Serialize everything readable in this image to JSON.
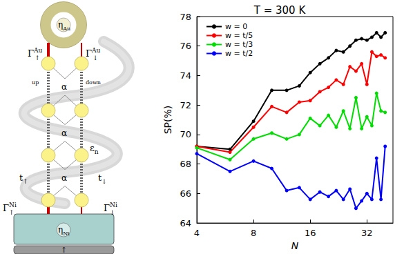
{
  "chart_data": {
    "type": "line",
    "title": "T = 300 K",
    "x_label": "N",
    "y_label": "SP(%)",
    "x": [
      4,
      6,
      8,
      10,
      12,
      14,
      16,
      18,
      20,
      22,
      24,
      26,
      28,
      30,
      32,
      34,
      36,
      38,
      40
    ],
    "xlim": [
      4,
      44
    ],
    "xticks": [
      4,
      8,
      16,
      32
    ],
    "log": "x",
    "ylim": [
      64,
      78
    ],
    "yticks": [
      64,
      66,
      68,
      70,
      72,
      74,
      76,
      78
    ],
    "grid": false,
    "legend": "upper left",
    "marker": "circle",
    "series": [
      {
        "name": "w = 0",
        "color": "#000000",
        "values": [
          69.2,
          69.0,
          70.9,
          73.0,
          73.0,
          73.3,
          74.2,
          74.8,
          75.2,
          75.7,
          75.6,
          76.0,
          76.4,
          76.5,
          76.4,
          76.6,
          76.9,
          76.6,
          76.9
        ]
      },
      {
        "name": "w = t/5",
        "color": "#ff0000",
        "values": [
          69.2,
          68.8,
          70.5,
          71.9,
          71.5,
          72.2,
          72.3,
          72.9,
          73.2,
          73.7,
          73.4,
          74.6,
          74.3,
          74.8,
          73.4,
          75.6,
          75.3,
          75.4,
          75.2
        ]
      },
      {
        "name": "w = t/3",
        "color": "#00dd00",
        "values": [
          69.1,
          68.3,
          69.7,
          70.1,
          69.7,
          70.0,
          71.1,
          70.6,
          71.3,
          70.5,
          71.6,
          70.4,
          72.5,
          70.4,
          71.2,
          70.6,
          72.8,
          71.6,
          71.5
        ]
      },
      {
        "name": "w = t/2",
        "color": "#0000ff",
        "values": [
          68.7,
          67.5,
          68.2,
          67.7,
          66.2,
          66.4,
          65.6,
          66.1,
          65.8,
          66.2,
          65.6,
          66.3,
          65.0,
          65.5,
          66.0,
          65.6,
          68.4,
          65.6,
          69.2
        ]
      }
    ]
  },
  "diagram": {
    "labels": [
      {
        "text": "η",
        "sub": "Au"
      },
      {
        "text": "Γ",
        "sub": "↑",
        "sup": "Au"
      },
      {
        "text": "Γ",
        "sub": "↓",
        "sup": "Au"
      },
      {
        "text": "up"
      },
      {
        "text": "down"
      },
      {
        "text": "α"
      },
      {
        "text": "α"
      },
      {
        "text": "α"
      },
      {
        "text": "ε",
        "sub": "n"
      },
      {
        "text": "t",
        "sub": "↑"
      },
      {
        "text": "t",
        "sub": "↓"
      },
      {
        "text": "Γ",
        "sub": "↑",
        "sup": "Ni"
      },
      {
        "text": "Γ",
        "sub": "↓",
        "sup": "Ni"
      },
      {
        "text": "η",
        "sub": "Ni"
      },
      {
        "text": "↑"
      }
    ]
  }
}
